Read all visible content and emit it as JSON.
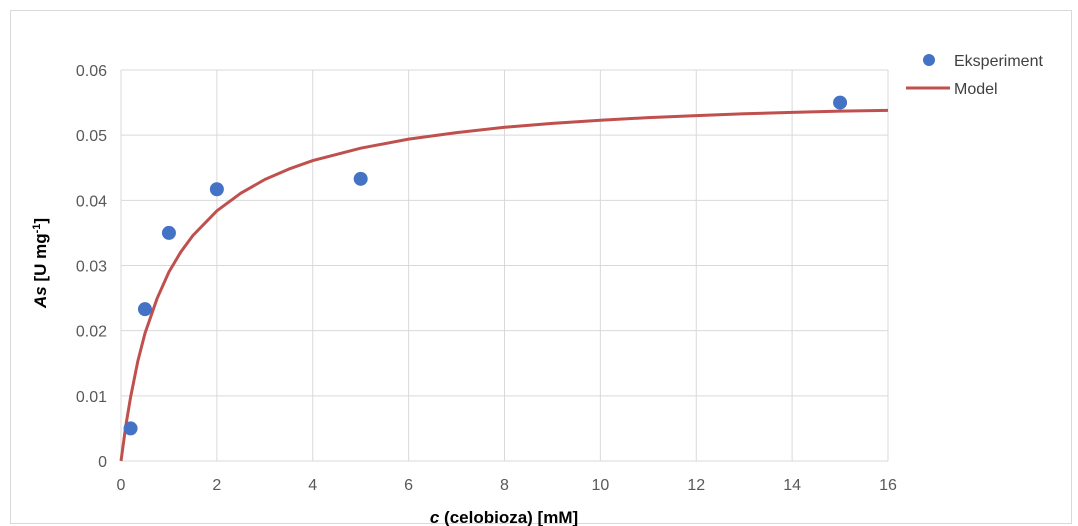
{
  "chart_data": {
    "type": "scatter",
    "title": "",
    "xlabel": {
      "italic": "c",
      "rest": " (celobioza) [mM]"
    },
    "ylabel": {
      "italic": "As",
      "rest": " [U mg",
      "sup": "-1",
      "end": "]"
    },
    "xlim": [
      0,
      16
    ],
    "ylim": [
      0,
      0.06
    ],
    "x_ticks": [
      "0",
      "2",
      "4",
      "6",
      "8",
      "10",
      "12",
      "14",
      "16"
    ],
    "y_ticks": [
      "0",
      "0.01",
      "0.02",
      "0.03",
      "0.04",
      "0.05",
      "0.06"
    ],
    "grid": true,
    "legend_position": "top-right",
    "series": [
      {
        "name": "Eksperiment",
        "kind": "points",
        "color": "#4472c4",
        "x": [
          0.2,
          0.5,
          1,
          2,
          5,
          15
        ],
        "y": [
          0.005,
          0.0233,
          0.035,
          0.0417,
          0.0433,
          0.055
        ]
      },
      {
        "name": "Model",
        "kind": "curve",
        "color": "#c0504d",
        "x": [
          0,
          0.1,
          0.2,
          0.35,
          0.5,
          0.75,
          1,
          1.25,
          1.5,
          2,
          2.5,
          3,
          3.5,
          4,
          5,
          6,
          7,
          8,
          9,
          10,
          11,
          12,
          13,
          14,
          15,
          16
        ],
        "y": [
          0,
          0.0054,
          0.0098,
          0.0153,
          0.0196,
          0.0249,
          0.029,
          0.0321,
          0.0346,
          0.0384,
          0.0411,
          0.0432,
          0.0448,
          0.0461,
          0.048,
          0.0494,
          0.0504,
          0.0512,
          0.0518,
          0.0523,
          0.0527,
          0.053,
          0.0533,
          0.0535,
          0.0537,
          0.0538
        ]
      }
    ]
  }
}
